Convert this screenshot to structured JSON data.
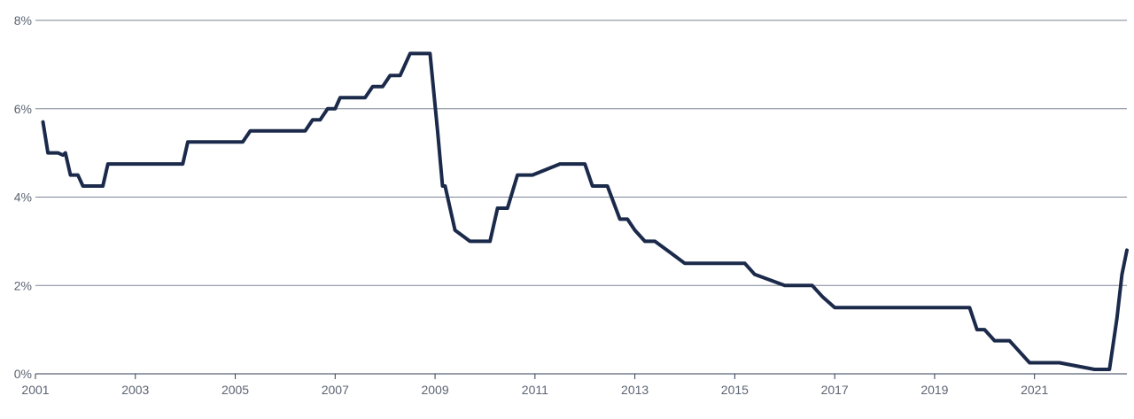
{
  "chart_data": {
    "type": "line",
    "title": "",
    "xlabel": "",
    "ylabel": "",
    "xlim": [
      2001.0,
      2022.85
    ],
    "ylim": [
      0,
      8
    ],
    "x_ticks": [
      {
        "value": 2001,
        "label": "2001"
      },
      {
        "value": 2003,
        "label": "2003"
      },
      {
        "value": 2005,
        "label": "2005"
      },
      {
        "value": 2007,
        "label": "2007"
      },
      {
        "value": 2009,
        "label": "2009"
      },
      {
        "value": 2011,
        "label": "2011"
      },
      {
        "value": 2013,
        "label": "2013"
      },
      {
        "value": 2015,
        "label": "2015"
      },
      {
        "value": 2017,
        "label": "2017"
      },
      {
        "value": 2019,
        "label": "2019"
      },
      {
        "value": 2021,
        "label": "2021"
      }
    ],
    "y_ticks": [
      {
        "value": 0,
        "label": "0%"
      },
      {
        "value": 2,
        "label": "2%"
      },
      {
        "value": 4,
        "label": "4%"
      },
      {
        "value": 6,
        "label": "6%"
      },
      {
        "value": 8,
        "label": "8%"
      }
    ],
    "grid": "horizontal",
    "legend": "none",
    "colors": {
      "line": "#1b2a4a",
      "grid": "#7b8593",
      "axis": "#2f3e55",
      "text": "#5b6472"
    },
    "series": [
      {
        "x": [
          2001.15,
          2001.25,
          2001.35,
          2001.45,
          2001.55,
          2001.6,
          2001.7,
          2001.85,
          2001.95,
          2002.05,
          2002.2,
          2002.35,
          2002.45,
          2002.6,
          2002.75,
          2003.0,
          2003.5,
          2003.8,
          2003.95,
          2004.05,
          2004.25,
          2004.5,
          2005.0,
          2005.15,
          2005.3,
          2005.5,
          2006.0,
          2006.25,
          2006.4,
          2006.55,
          2006.7,
          2006.85,
          2007.0,
          2007.1,
          2007.3,
          2007.5,
          2007.6,
          2007.75,
          2007.95,
          2008.1,
          2008.3,
          2008.5,
          2008.7,
          2008.9,
          2009.05,
          2009.15,
          2009.2,
          2009.4,
          2009.7,
          2009.9,
          2010.05,
          2010.1,
          2010.25,
          2010.45,
          2010.65,
          2010.8,
          2010.95,
          2011.5,
          2011.8,
          2011.9,
          2012.0,
          2012.15,
          2012.3,
          2012.45,
          2012.7,
          2012.85,
          2013.0,
          2013.2,
          2013.4,
          2013.7,
          2014.0,
          2014.5,
          2015.0,
          2015.2,
          2015.4,
          2016.0,
          2016.3,
          2016.55,
          2016.75,
          2017.0,
          2018.0,
          2019.0,
          2019.5,
          2019.7,
          2019.85,
          2020.0,
          2020.2,
          2020.5,
          2020.9,
          2021.0,
          2021.5,
          2022.2,
          2022.35,
          2022.5,
          2022.65,
          2022.75,
          2022.85
        ],
        "values": [
          5.7,
          5.0,
          5.0,
          5.0,
          4.95,
          5.0,
          4.5,
          4.5,
          4.25,
          4.25,
          4.25,
          4.25,
          4.75,
          4.75,
          4.75,
          4.75,
          4.75,
          4.75,
          4.75,
          5.25,
          5.25,
          5.25,
          5.25,
          5.25,
          5.5,
          5.5,
          5.5,
          5.5,
          5.5,
          5.75,
          5.75,
          6.0,
          6.0,
          6.25,
          6.25,
          6.25,
          6.25,
          6.5,
          6.5,
          6.75,
          6.75,
          7.25,
          7.25,
          7.25,
          5.5,
          4.25,
          4.25,
          3.25,
          3.0,
          3.0,
          3.0,
          3.0,
          3.75,
          3.75,
          4.5,
          4.5,
          4.5,
          4.75,
          4.75,
          4.75,
          4.75,
          4.25,
          4.25,
          4.25,
          3.5,
          3.5,
          3.25,
          3.0,
          3.0,
          2.75,
          2.5,
          2.5,
          2.5,
          2.5,
          2.25,
          2.0,
          2.0,
          2.0,
          1.75,
          1.5,
          1.5,
          1.5,
          1.5,
          1.5,
          1.0,
          1.0,
          0.75,
          0.75,
          0.25,
          0.25,
          0.25,
          0.1,
          0.1,
          0.1,
          1.25,
          2.25,
          2.8
        ]
      }
    ]
  }
}
